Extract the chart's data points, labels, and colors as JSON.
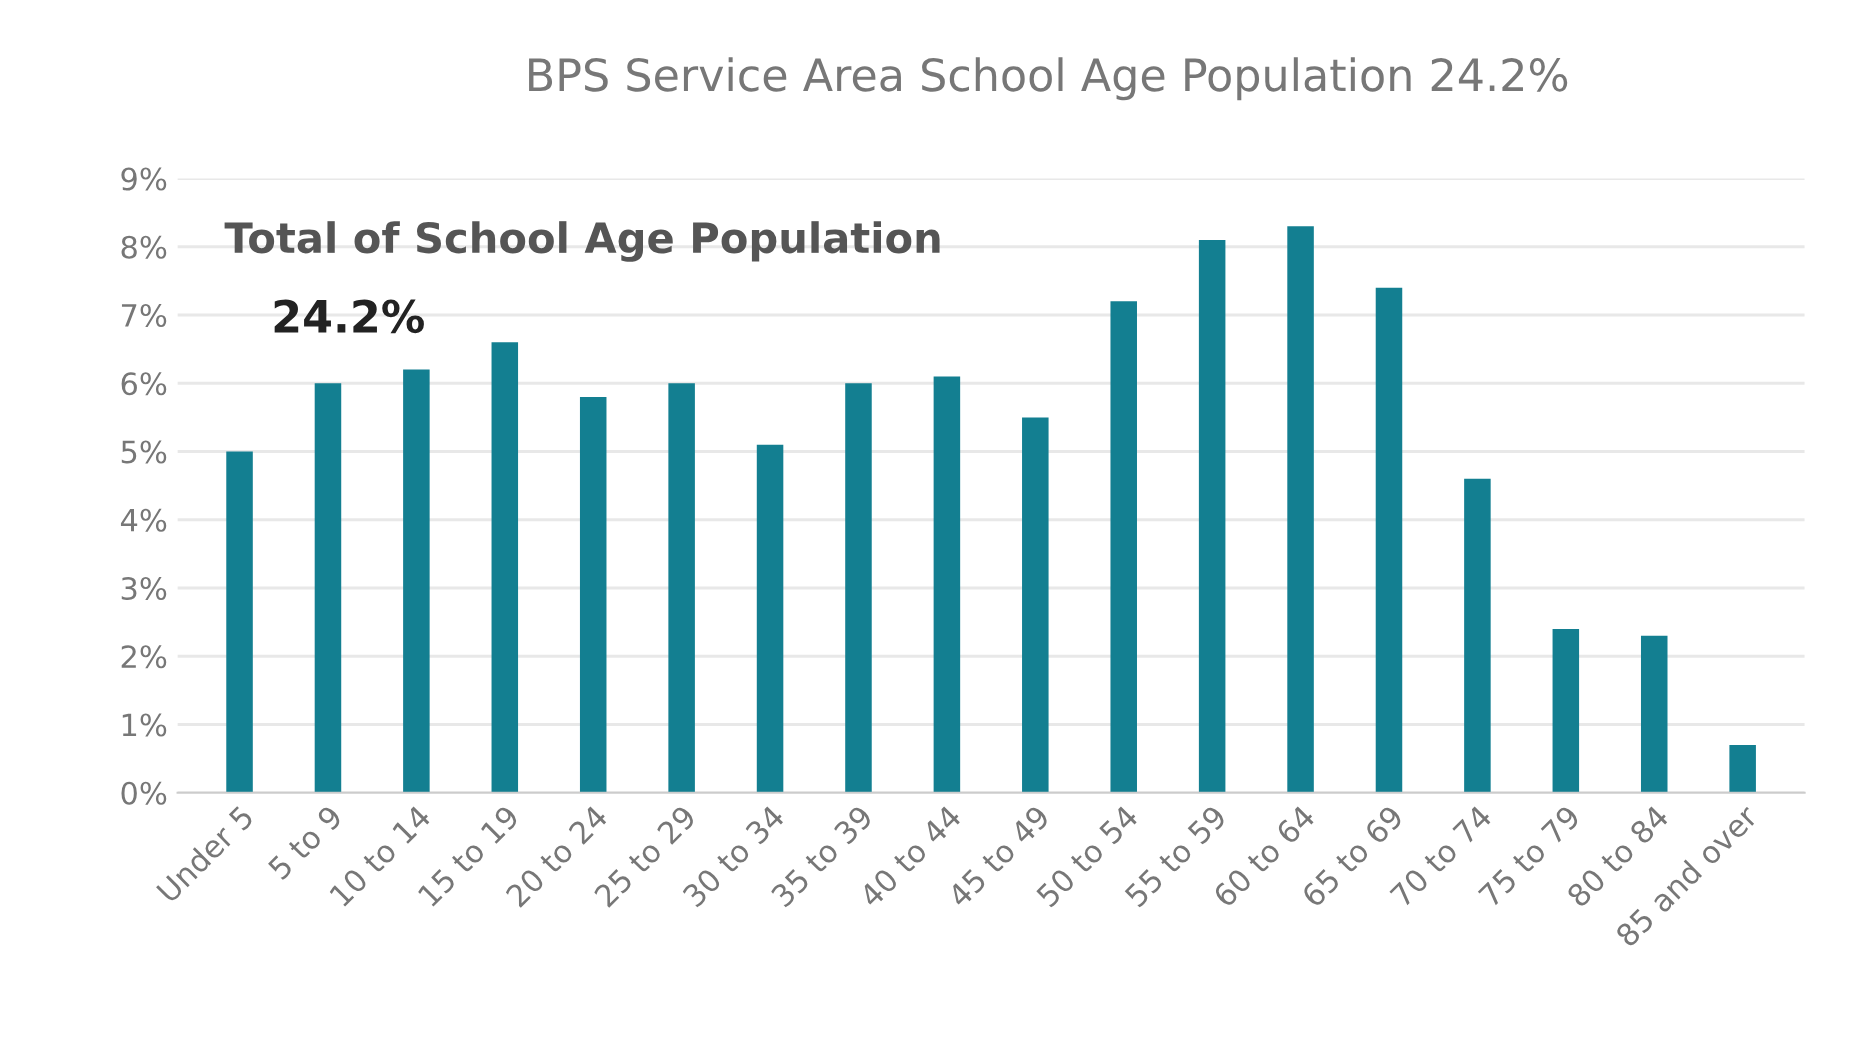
{
  "chart_data": {
    "type": "bar",
    "title": "BPS Service Area School Age Population 24.2%",
    "categories": [
      "Under 5",
      "5 to 9",
      "10 to 14",
      "15 to 19",
      "20 to 24",
      "25 to 29",
      "30 to 34",
      "35 to 39",
      "40 to 44",
      "45 to 49",
      "50 to 54",
      "55 to 59",
      "60 to 64",
      "65 to 69",
      "70 to 74",
      "75 to 79",
      "80 to 84",
      "85 and over"
    ],
    "values": [
      5.0,
      6.0,
      6.2,
      6.6,
      5.8,
      6.0,
      5.1,
      6.0,
      6.1,
      5.5,
      7.2,
      8.1,
      8.3,
      7.4,
      4.6,
      2.4,
      2.3,
      0.7
    ],
    "color": "#137f91",
    "ylim": [
      0,
      9
    ],
    "yticks": [
      {
        "value": 0,
        "label": "0%"
      },
      {
        "value": 1,
        "label": "1%"
      },
      {
        "value": 2,
        "label": "2%"
      },
      {
        "value": 3,
        "label": "3%"
      },
      {
        "value": 4,
        "label": "4%"
      },
      {
        "value": 5,
        "label": "5%"
      },
      {
        "value": 6,
        "label": "6%"
      },
      {
        "value": 7,
        "label": "7%"
      },
      {
        "value": 8,
        "label": "8%"
      },
      {
        "value": 9,
        "label": "9%"
      }
    ],
    "grid": "y",
    "annotations": [
      "Total of School Age Population",
      "24.2%"
    ]
  }
}
